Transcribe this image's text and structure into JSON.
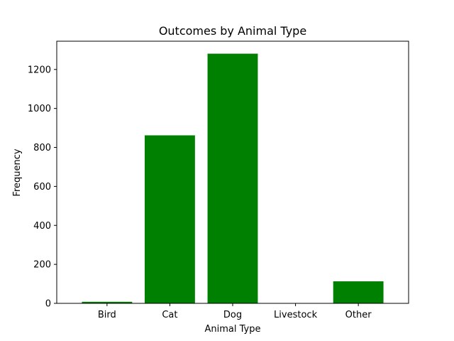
{
  "chart_data": {
    "type": "bar",
    "title": "Outcomes by Animal Type",
    "xlabel": "Animal Type",
    "ylabel": "Frequency",
    "categories": [
      "Bird",
      "Cat",
      "Dog",
      "Livestock",
      "Other"
    ],
    "values": [
      8,
      862,
      1281,
      1,
      113
    ],
    "ylim": [
      0,
      1345
    ],
    "yticks": [
      0,
      200,
      400,
      600,
      800,
      1000,
      1200
    ],
    "bar_color": "#008000",
    "grid": false,
    "legend": "none"
  }
}
